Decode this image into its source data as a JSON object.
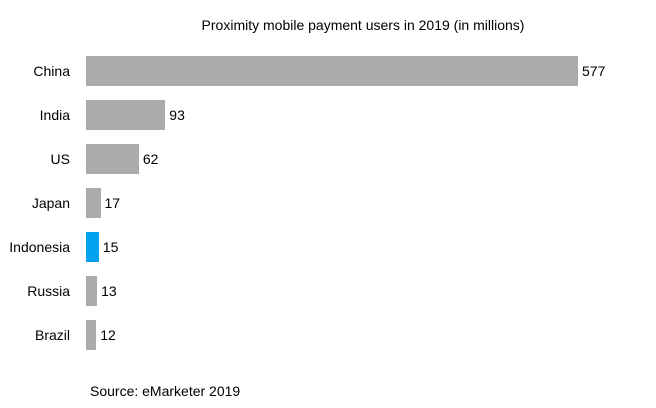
{
  "chart": {
    "title": "Proximity mobile payment users in 2019 (in millions)",
    "source": "Source: eMarketer 2019"
  },
  "chart_data": {
    "type": "bar",
    "orientation": "horizontal",
    "title": "Proximity mobile payment users in 2019 (in millions)",
    "categories": [
      "China",
      "India",
      "US",
      "Japan",
      "Indonesia",
      "Russia",
      "Brazil"
    ],
    "values": [
      577,
      93,
      62,
      17,
      15,
      13,
      12
    ],
    "data_labels": [
      577,
      93,
      62,
      17,
      15,
      13,
      12
    ],
    "xlabel": "",
    "ylabel": "",
    "xlim": [
      0,
      650
    ],
    "grid": false,
    "legend": false,
    "bar_color": "#ABABAB",
    "highlight_category": "Indonesia",
    "highlight_color": "#00A2F0",
    "source": "Source: eMarketer 2019"
  }
}
